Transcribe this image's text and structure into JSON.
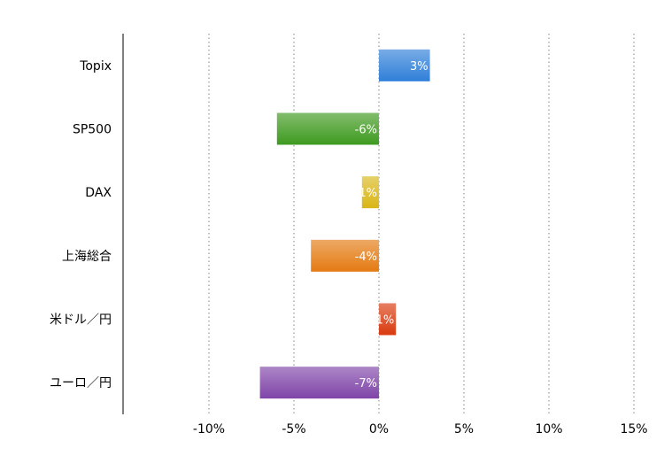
{
  "chart_data": {
    "type": "bar",
    "orientation": "horizontal",
    "categories": [
      "Topix",
      "SP500",
      "DAX",
      "上海総合",
      "米ドル／円",
      "ユーロ／円"
    ],
    "values": [
      3,
      -6,
      -1,
      -4,
      1,
      -7
    ],
    "data_labels": [
      "3%",
      "-6%",
      "-1%",
      "-4%",
      "1%",
      "-7%"
    ],
    "colors": [
      "#2f7fd8",
      "#3e9a1f",
      "#d9b616",
      "#e47a12",
      "#d93a0e",
      "#7f45a8"
    ],
    "xlim": [
      -15,
      15
    ],
    "xticks": [
      -10,
      -5,
      0,
      5,
      10,
      15
    ],
    "xtick_labels": [
      "-10%",
      "-5%",
      "0%",
      "5%",
      "10%",
      "15%"
    ],
    "grid": true,
    "title": "",
    "xlabel": "",
    "ylabel": ""
  }
}
